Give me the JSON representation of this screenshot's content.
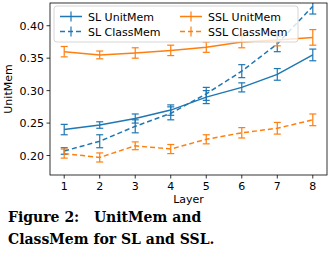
{
  "chart_data": {
    "type": "line",
    "x_label": "Layer",
    "y_label": "UnitMem",
    "x": [
      1,
      2,
      3,
      4,
      5,
      6,
      7,
      8
    ],
    "series": [
      {
        "name": "SL UnitMem",
        "color": "#1f77b4",
        "line_style": "solid",
        "values": [
          0.24,
          0.247,
          0.257,
          0.27,
          0.29,
          0.305,
          0.325,
          0.355
        ],
        "errors": [
          0.008,
          0.005,
          0.007,
          0.008,
          0.01,
          0.007,
          0.009,
          0.009
        ]
      },
      {
        "name": "SL ClassMem",
        "color": "#1f77b4",
        "line_style": "dashed",
        "values": [
          0.207,
          0.222,
          0.245,
          0.265,
          0.295,
          0.33,
          0.372,
          0.43
        ],
        "errors": [
          0.005,
          0.01,
          0.01,
          0.01,
          0.01,
          0.01,
          0.012,
          0.012
        ]
      },
      {
        "name": "SSL UnitMem",
        "color": "#ff7f0e",
        "line_style": "solid",
        "values": [
          0.36,
          0.355,
          0.358,
          0.362,
          0.367,
          0.375,
          0.378,
          0.382
        ],
        "errors": [
          0.008,
          0.006,
          0.008,
          0.008,
          0.008,
          0.009,
          0.009,
          0.012
        ]
      },
      {
        "name": "SSL ClassMem",
        "color": "#ff7f0e",
        "line_style": "dashed",
        "values": [
          0.203,
          0.197,
          0.215,
          0.21,
          0.225,
          0.235,
          0.242,
          0.255
        ],
        "errors": [
          0.007,
          0.007,
          0.006,
          0.007,
          0.007,
          0.008,
          0.009,
          0.009
        ]
      }
    ],
    "xlim": [
      0.6,
      8.4
    ],
    "xticks": [
      1,
      2,
      3,
      4,
      5,
      6,
      7,
      8
    ],
    "ylim": [
      0.17,
      0.435
    ],
    "yticks": [
      {
        "value": 0.2,
        "label": "0.20"
      },
      {
        "value": 0.25,
        "label": "0.25"
      },
      {
        "value": 0.3,
        "label": "0.30"
      },
      {
        "value": 0.35,
        "label": "0.35"
      },
      {
        "value": 0.4,
        "label": "0.40"
      }
    ],
    "grid": false,
    "legend": "upper-left"
  },
  "caption": [
    "Figure 2:   UnitMem and",
    "ClassMem for SL and SSL."
  ]
}
